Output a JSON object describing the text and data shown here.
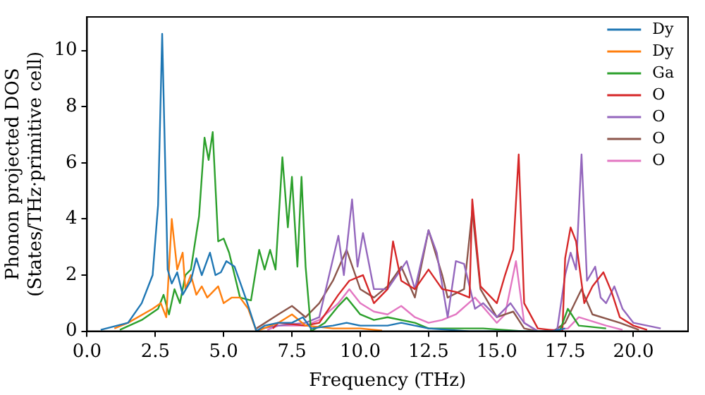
{
  "chart_data": {
    "type": "line",
    "xlabel": "Frequency (THz)",
    "ylabel": "Phonon projected DOS (States/THz·primitive cell)",
    "xlim": [
      0,
      22
    ],
    "ylim": [
      0,
      11.2
    ],
    "xticks": [
      {
        "value": 0,
        "label": "0.0"
      },
      {
        "value": 2.5,
        "label": "2.5"
      },
      {
        "value": 5,
        "label": "5.0"
      },
      {
        "value": 7.5,
        "label": "7.5"
      },
      {
        "value": 10,
        "label": "10.0"
      },
      {
        "value": 12.5,
        "label": "12.5"
      },
      {
        "value": 15,
        "label": "15.0"
      },
      {
        "value": 17.5,
        "label": "17.5"
      },
      {
        "value": 20,
        "label": "20.0"
      }
    ],
    "yticks": [
      0,
      2,
      4,
      6,
      8,
      10
    ],
    "grid": false,
    "legend": "top right",
    "marker": "none",
    "line_style": "solid",
    "series": [
      {
        "name": "Dy",
        "color": "#1f77b4",
        "x": [
          0.5,
          1.5,
          2,
          2.4,
          2.6,
          2.75,
          2.95,
          3.1,
          3.3,
          3.5,
          3.8,
          4,
          4.2,
          4.5,
          4.7,
          4.9,
          5.1,
          5.4,
          5.8,
          6.2,
          6.5,
          7,
          7.5,
          7.9,
          8.2,
          9,
          9.5,
          10,
          11,
          11.5,
          12.5,
          14,
          17,
          17.5
        ],
        "values": [
          0.05,
          0.3,
          1,
          2,
          4.5,
          10.6,
          2.2,
          1.7,
          2.1,
          1.3,
          1.8,
          2.6,
          2,
          2.8,
          2,
          2.1,
          2.5,
          2.3,
          1.2,
          0,
          0.2,
          0.3,
          0.3,
          0.5,
          0.1,
          0.2,
          0.3,
          0.2,
          0.2,
          0.3,
          0.1,
          0,
          0,
          0.1
        ]
      },
      {
        "name": "Dy",
        "color": "#ff7f0e",
        "x": [
          1,
          1.5,
          2.4,
          2.7,
          2.9,
          3.1,
          3.3,
          3.5,
          3.6,
          3.8,
          4,
          4.2,
          4.4,
          4.6,
          4.8,
          5,
          5.3,
          5.6,
          5.9,
          6.2,
          7,
          7.5,
          8,
          9,
          10,
          10.8
        ],
        "values": [
          0.1,
          0.3,
          0.8,
          1,
          0.5,
          4,
          2.2,
          2.8,
          1.5,
          2,
          1.3,
          1.6,
          1.2,
          1.4,
          1.6,
          1,
          1.2,
          1.2,
          0.8,
          0,
          0.3,
          0.6,
          0.2,
          0.1,
          0.1,
          0.02
        ]
      },
      {
        "name": "Ga",
        "color": "#2ca02c",
        "x": [
          1.2,
          2,
          2.6,
          2.8,
          3,
          3.2,
          3.4,
          3.6,
          3.8,
          4.1,
          4.3,
          4.45,
          4.6,
          4.8,
          5,
          5.2,
          5.6,
          6,
          6.3,
          6.5,
          6.7,
          6.9,
          7.15,
          7.35,
          7.5,
          7.7,
          7.85,
          8,
          8.2,
          8.7,
          9.2,
          9.5,
          10,
          10.5,
          11,
          12,
          12.5,
          13.5,
          14.5,
          16,
          17.3,
          17.6,
          18,
          19
        ],
        "values": [
          0.05,
          0.4,
          0.8,
          1.3,
          0.6,
          1.5,
          1,
          2,
          2.2,
          4.1,
          6.9,
          6.1,
          7.1,
          3.2,
          3.3,
          2.8,
          1.2,
          1.1,
          2.9,
          2.2,
          2.9,
          2.2,
          6.2,
          3.7,
          5.5,
          2.3,
          5.5,
          2.3,
          0,
          0.3,
          0.9,
          1.2,
          0.6,
          0.4,
          0.5,
          0.3,
          0.1,
          0.1,
          0.1,
          0,
          0,
          0.8,
          0.2,
          0.1
        ]
      },
      {
        "name": "O",
        "color": "#d62728",
        "x": [
          6.8,
          7,
          8,
          8.5,
          9.2,
          9.6,
          10.1,
          10.5,
          11,
          11.2,
          11.5,
          12,
          12.5,
          13,
          13.5,
          14,
          14.1,
          14.4,
          15,
          15.3,
          15.6,
          15.8,
          16,
          16.5,
          17.4,
          17.5,
          17.7,
          17.9,
          18.2,
          18.5,
          18.9,
          19.2,
          19.5,
          20,
          20.5
        ],
        "values": [
          0.1,
          0.3,
          0.2,
          0.3,
          1.3,
          1.8,
          2,
          1,
          1.5,
          3.2,
          1.8,
          1.5,
          2.2,
          1.5,
          1.4,
          1.2,
          4.7,
          1.6,
          1,
          2,
          2.9,
          6.3,
          1,
          0.1,
          0,
          2.6,
          3.7,
          3.2,
          1,
          1.6,
          2.1,
          1.4,
          0.5,
          0.2,
          0.05
        ]
      },
      {
        "name": "O",
        "color": "#9467bd",
        "x": [
          6.4,
          7,
          8,
          8.5,
          9.2,
          9.4,
          9.7,
          9.9,
          10.1,
          10.5,
          11,
          11.7,
          12,
          12.5,
          12.8,
          13.2,
          13.5,
          13.8,
          14.2,
          14.5,
          15,
          15.5,
          16,
          16.5,
          17.2,
          17.5,
          17.7,
          17.9,
          18.1,
          18.3,
          18.6,
          18.8,
          19,
          19.3,
          19.6,
          20,
          21
        ],
        "values": [
          0.1,
          0.2,
          0.3,
          0.5,
          3.4,
          2,
          4.7,
          2.3,
          3.5,
          1.5,
          1.5,
          2.5,
          1.5,
          3.6,
          2.8,
          0.5,
          2.5,
          2.4,
          0.8,
          1,
          0.5,
          1,
          0.3,
          0,
          0,
          2,
          2.8,
          2.2,
          6.3,
          1.8,
          2.3,
          1.2,
          1,
          1.6,
          0.8,
          0.3,
          0.1
        ]
      },
      {
        "name": "O",
        "color": "#8c564b",
        "x": [
          6.2,
          7,
          7.5,
          8,
          8.5,
          9,
          9.5,
          10,
          10.5,
          11,
          11.5,
          12,
          12.5,
          13,
          13.2,
          13.8,
          14.1,
          14.4,
          15,
          15.6,
          16,
          16.5,
          17.1,
          17.5,
          18.1,
          18.5,
          19.5,
          20.2
        ],
        "values": [
          0.1,
          0.6,
          0.9,
          0.5,
          1,
          1.8,
          2.9,
          1.5,
          1.2,
          1.6,
          2.3,
          1.2,
          3.6,
          2,
          1.2,
          1.5,
          4.3,
          1.5,
          0.5,
          0.7,
          0.1,
          0,
          0.02,
          0.3,
          1.5,
          0.6,
          0.3,
          0.05
        ]
      },
      {
        "name": "O",
        "color": "#e377c2",
        "x": [
          6.6,
          7,
          8,
          8.5,
          9.2,
          9.6,
          10,
          10.5,
          11,
          11.5,
          12,
          12.5,
          13,
          13.5,
          14.2,
          15,
          15.3,
          15.7,
          16,
          16.5,
          17.6,
          18,
          19,
          19.6
        ],
        "values": [
          0.05,
          0.2,
          0.2,
          0.4,
          1,
          1.5,
          1,
          0.7,
          0.6,
          0.9,
          0.5,
          0.3,
          0.4,
          0.6,
          1.2,
          0.3,
          0.6,
          2.5,
          0.3,
          0,
          0.1,
          0.5,
          0.2,
          0.05
        ]
      }
    ]
  }
}
